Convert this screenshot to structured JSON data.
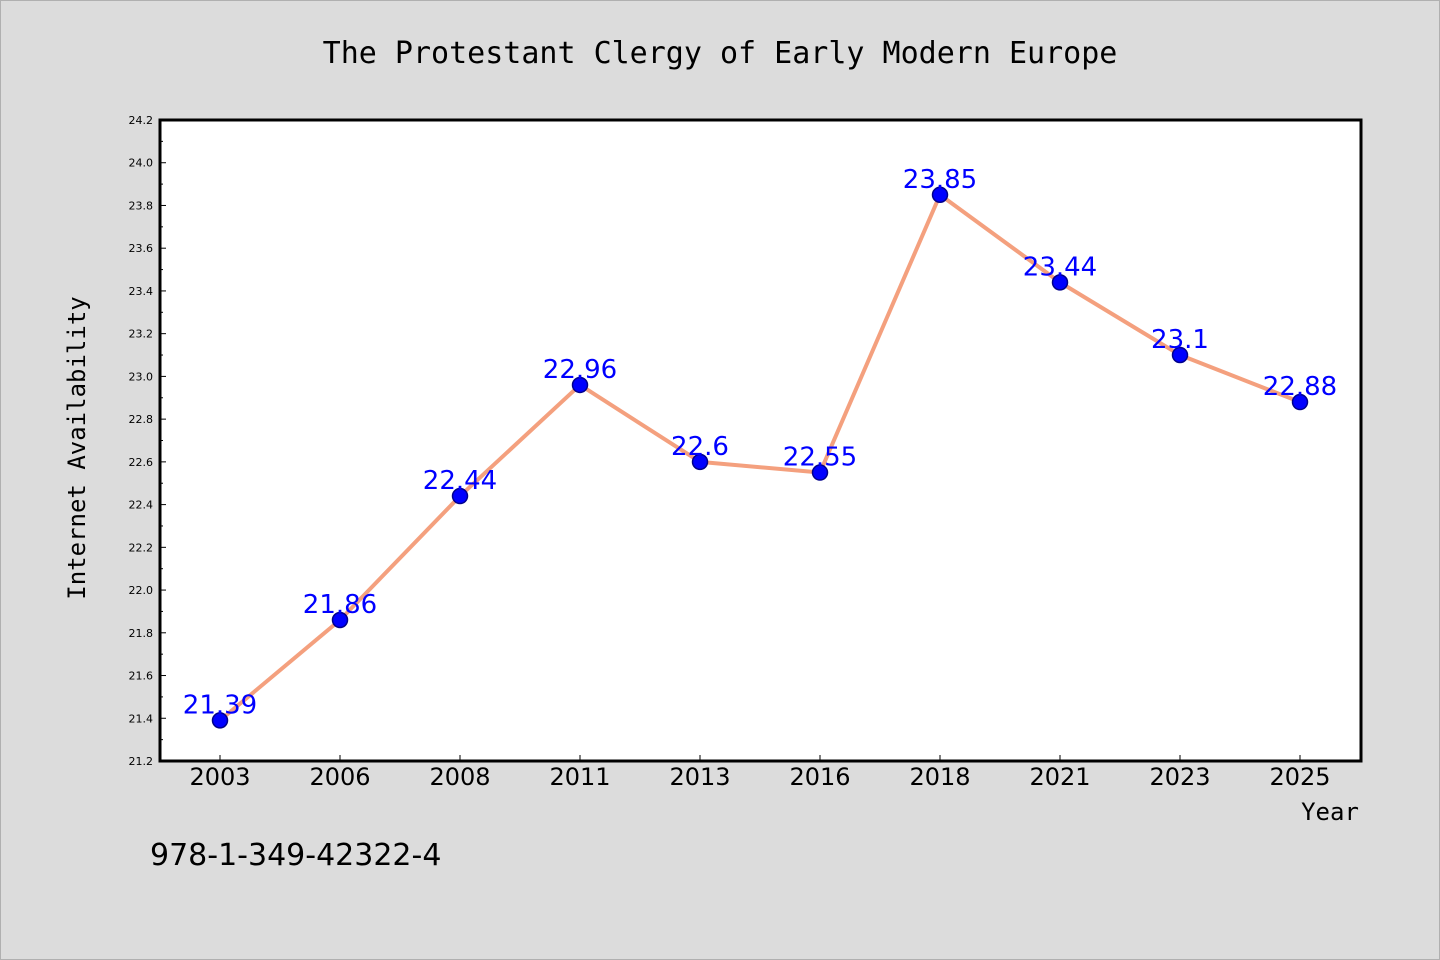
{
  "chart_data": {
    "type": "line",
    "title": "The Protestant Clergy of Early Modern Europe",
    "xlabel": "Year",
    "ylabel": "Internet Availability",
    "categories": [
      "2003",
      "2006",
      "2008",
      "2011",
      "2013",
      "2016",
      "2018",
      "2021",
      "2023",
      "2025"
    ],
    "values": [
      21.39,
      21.86,
      22.44,
      22.96,
      22.6,
      22.55,
      23.85,
      23.44,
      23.1,
      22.88
    ],
    "data_labels": [
      "21.39",
      "21.86",
      "22.44",
      "22.96",
      "22.6",
      "22.55",
      "23.85",
      "23.44",
      "23.1",
      "22.88"
    ],
    "ylim": [
      21.2,
      24.2
    ],
    "yticks": [
      "21.2",
      "21.4",
      "21.6",
      "21.8",
      "22.0",
      "22.2",
      "22.4",
      "22.6",
      "22.8",
      "23.0",
      "23.2",
      "23.4",
      "23.6",
      "23.8",
      "24.0",
      "24.2"
    ],
    "grid": false,
    "colors": {
      "line": "#f4a07e",
      "marker": "#0000ff",
      "marker_edge": "#00008b",
      "data_label": "#0000ff",
      "background": "#dcdcdc",
      "plot_background": "#ffffff"
    }
  },
  "footnote": "978-1-349-42322-4"
}
